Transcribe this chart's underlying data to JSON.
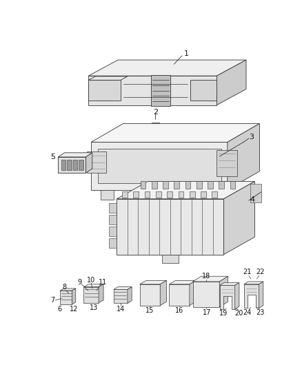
{
  "background_color": "#ffffff",
  "edge_color": "#333333",
  "face_light": "#f0f0f0",
  "face_mid": "#d8d8d8",
  "face_dark": "#b0b0b0",
  "line_color": "#555555",
  "text_color": "#111111",
  "figsize": [
    4.38,
    5.33
  ],
  "dpi": 100,
  "lw": 0.6
}
